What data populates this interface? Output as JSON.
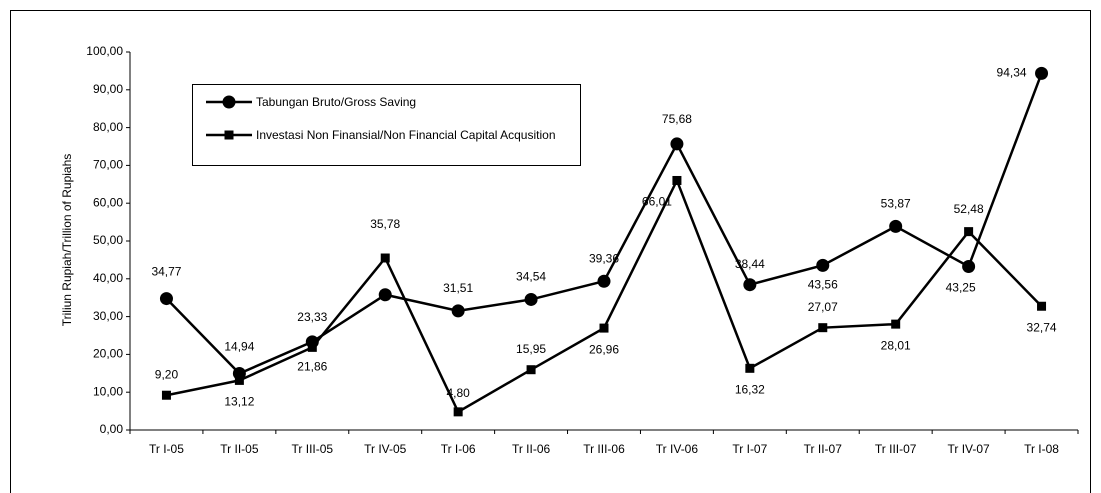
{
  "chart_data": {
    "type": "line",
    "y_label": "Triliun Rupiah/Trillion of Rupiahs",
    "categories": [
      "Tr I-05",
      "Tr II-05",
      "Tr III-05",
      "Tr IV-05",
      "Tr I-06",
      "Tr II-06",
      "Tr III-06",
      "Tr IV-06",
      "Tr I-07",
      "Tr II-07",
      "Tr III-07",
      "Tr IV-07",
      "Tr I-08"
    ],
    "ylim": [
      0,
      100
    ],
    "yticks": [
      {
        "value": 0,
        "label": "0,00"
      },
      {
        "value": 10,
        "label": "10,00"
      },
      {
        "value": 20,
        "label": "20,00"
      },
      {
        "value": 30,
        "label": "30,00"
      },
      {
        "value": 40,
        "label": "40,00"
      },
      {
        "value": 50,
        "label": "50,00"
      },
      {
        "value": 60,
        "label": "60,00"
      },
      {
        "value": 70,
        "label": "70,00"
      },
      {
        "value": 80,
        "label": "80,00"
      },
      {
        "value": 90,
        "label": "90,00"
      },
      {
        "value": 100,
        "label": "100,00"
      }
    ],
    "series": [
      {
        "name": "Tabungan Bruto/Gross Saving",
        "color": "#000000",
        "marker": "circle",
        "values": [
          34.77,
          14.94,
          23.33,
          35.78,
          31.51,
          34.54,
          39.36,
          75.68,
          38.44,
          43.56,
          53.87,
          43.25,
          94.34
        ],
        "value_labels": [
          "34,77",
          "14,94",
          "23,33",
          "35,78",
          "31,51",
          "34,54",
          "39,36",
          "75,68",
          "38,44",
          "43,56",
          "53,87",
          "43,25",
          "94,34"
        ]
      },
      {
        "name": "Investasi Non Finansial/Non Financial Capital Acqusition",
        "color": "#000000",
        "marker": "square",
        "values": [
          9.2,
          13.12,
          21.86,
          45.5,
          4.8,
          15.95,
          26.96,
          66.01,
          16.32,
          27.07,
          28.01,
          52.48,
          32.74
        ],
        "value_labels": [
          "9,20",
          "13,12",
          "21,86",
          null,
          "4,80",
          "15,95",
          "26,96",
          "66,01",
          "16,32",
          "27,07",
          "28,01",
          "52,48",
          "32,74"
        ]
      }
    ]
  }
}
